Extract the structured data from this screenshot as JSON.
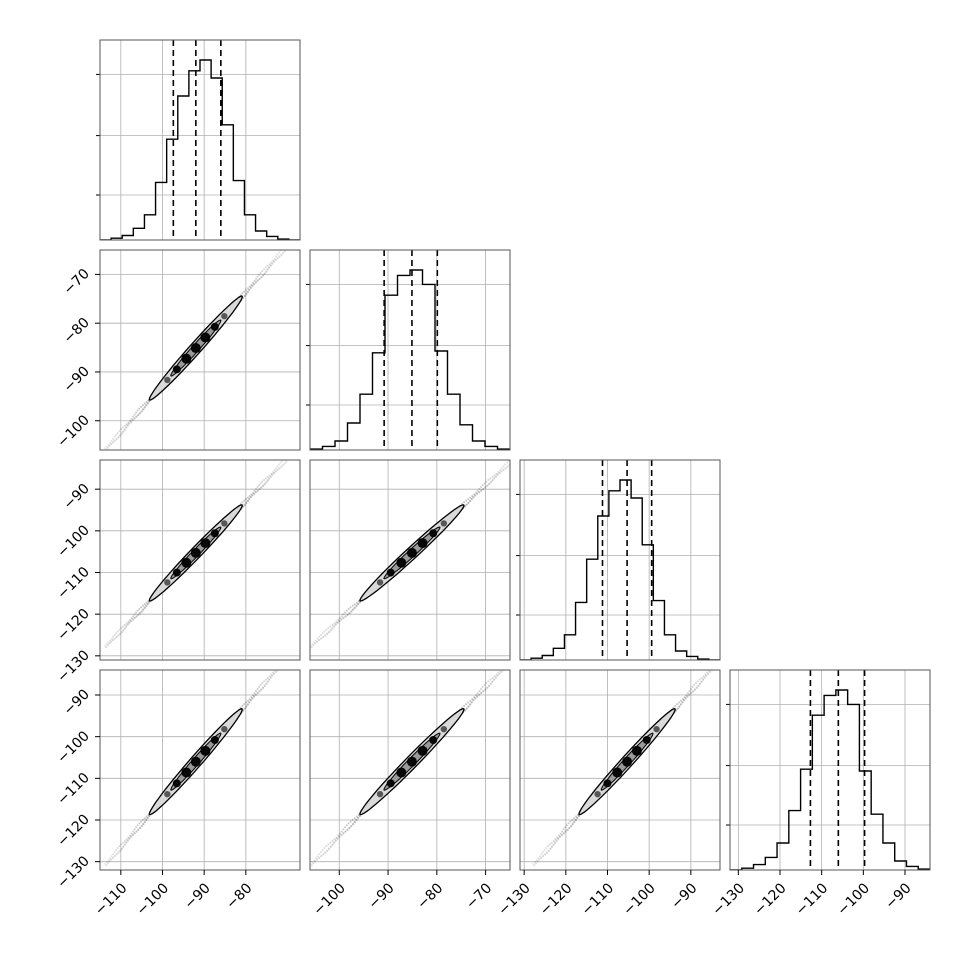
{
  "chart_data": {
    "type": "corner",
    "n_params": 4,
    "params": [
      {
        "range": [
          -115,
          -67
        ],
        "ticks": [
          -110,
          -100,
          -90,
          -80
        ],
        "tick_labels": [
          "−110",
          "−100",
          "−90",
          "−80"
        ],
        "quantiles": [
          -97.4,
          -92.0,
          -86.0
        ],
        "hist": [
          0.0,
          0.01,
          0.025,
          0.065,
          0.14,
          0.32,
          0.56,
          0.8,
          0.94,
          1.0,
          0.9,
          0.64,
          0.33,
          0.14,
          0.05,
          0.02,
          0.005,
          0.0
        ]
      },
      {
        "range": [
          -106,
          -65
        ],
        "ticks": [
          -100,
          -90,
          -80,
          -70
        ],
        "tick_labels": [
          "−100",
          "−90",
          "−80",
          "−70"
        ],
        "quantiles": [
          -90.8,
          -85.1,
          -79.9
        ],
        "hist": [
          0.005,
          0.02,
          0.05,
          0.15,
          0.31,
          0.54,
          0.86,
          0.97,
          1.0,
          0.92,
          0.55,
          0.31,
          0.14,
          0.05,
          0.02,
          0.005
        ]
      },
      {
        "range": [
          -131,
          -83
        ],
        "ticks": [
          -130,
          -120,
          -110,
          -100,
          -90
        ],
        "tick_labels": [
          "−130",
          "−120",
          "−110",
          "−100",
          "−90"
        ],
        "quantiles": [
          -111.2,
          -105.3,
          -99.4
        ],
        "hist": [
          0.0,
          0.01,
          0.025,
          0.065,
          0.14,
          0.32,
          0.56,
          0.8,
          0.94,
          1.0,
          0.9,
          0.64,
          0.33,
          0.14,
          0.05,
          0.02,
          0.005,
          0.0
        ]
      },
      {
        "range": [
          -132,
          -84
        ],
        "ticks": [
          -130,
          -120,
          -110,
          -100,
          -90
        ],
        "tick_labels": [
          "−130",
          "−120",
          "−110",
          "−100",
          "−90"
        ],
        "quantiles": [
          -112.7,
          -106.0,
          -99.7
        ],
        "hist": [
          0.0,
          0.01,
          0.03,
          0.07,
          0.15,
          0.33,
          0.56,
          0.86,
          0.97,
          1.0,
          0.92,
          0.55,
          0.31,
          0.15,
          0.05,
          0.02,
          0.005
        ]
      }
    ],
    "y_ticks_shown_on_rows": [
      1,
      2,
      3
    ],
    "x_ticks_shown_on_bottom_row": true,
    "grid": true
  }
}
